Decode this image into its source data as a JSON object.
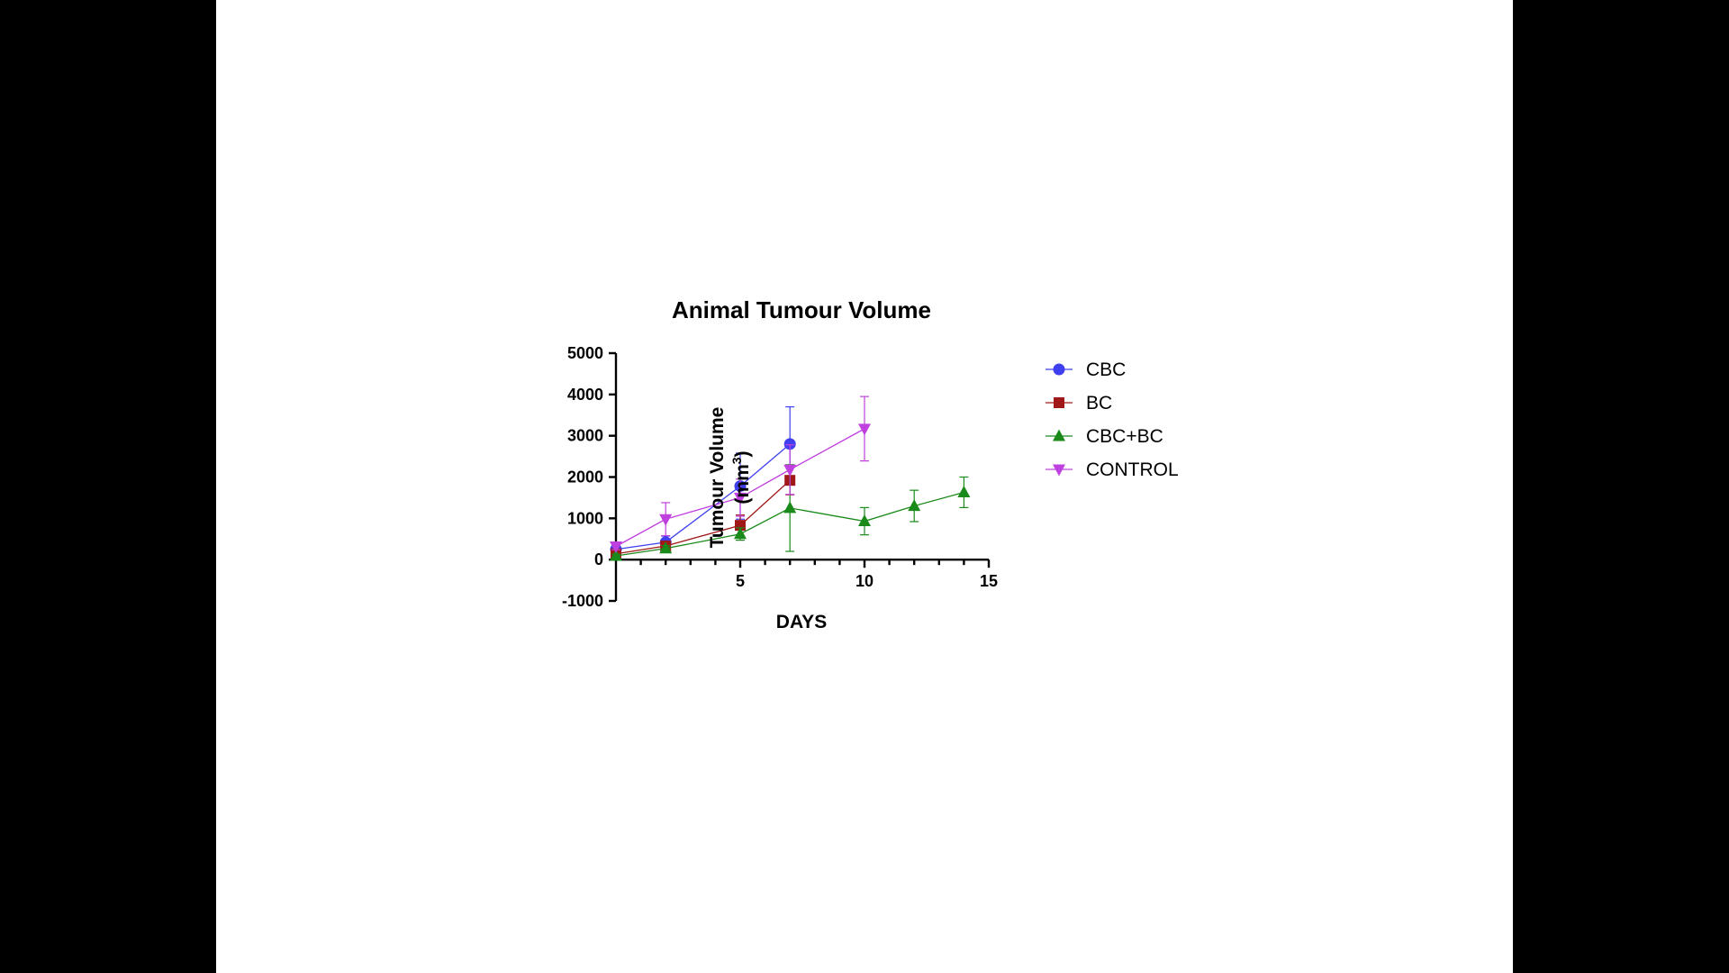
{
  "chart_data": {
    "type": "line",
    "title": "Animal Tumour Volume",
    "xlabel": "DAYS",
    "ylabel": "Tumour Volume",
    "ylabel_unit_prefix": "(mm",
    "ylabel_unit_sup": "3",
    "ylabel_unit_suffix": ")",
    "xlim": [
      0,
      15
    ],
    "ylim": [
      -1000,
      5000
    ],
    "x_ticks": [
      5,
      10,
      15
    ],
    "y_ticks": [
      -1000,
      0,
      1000,
      2000,
      3000,
      4000,
      5000
    ],
    "grid": false,
    "legend_position": "right",
    "series": [
      {
        "name": "CBC",
        "color": "#3f3ff0",
        "marker": "circle",
        "x": [
          0,
          2,
          5,
          7
        ],
        "y": [
          250,
          420,
          1780,
          2800
        ],
        "error": [
          80,
          150,
          800,
          900
        ]
      },
      {
        "name": "BC",
        "color": "#a01818",
        "marker": "square",
        "x": [
          0,
          2,
          5,
          7
        ],
        "y": [
          140,
          330,
          830,
          1920
        ],
        "error": [
          50,
          80,
          250,
          350
        ]
      },
      {
        "name": "CBC+BC",
        "color": "#1a8a1a",
        "marker": "triangle-up",
        "x": [
          0,
          2,
          5,
          7,
          10,
          12,
          14
        ],
        "y": [
          90,
          270,
          620,
          1250,
          930,
          1300,
          1630
        ],
        "error": [
          40,
          70,
          150,
          1050,
          330,
          380,
          370
        ]
      },
      {
        "name": "CONTROL",
        "color": "#c040e0",
        "marker": "triangle-down",
        "x": [
          0,
          2,
          5,
          7,
          10
        ],
        "y": [
          320,
          980,
          1500,
          2180,
          3170
        ],
        "error": [
          80,
          400,
          450,
          600,
          780
        ]
      }
    ]
  }
}
